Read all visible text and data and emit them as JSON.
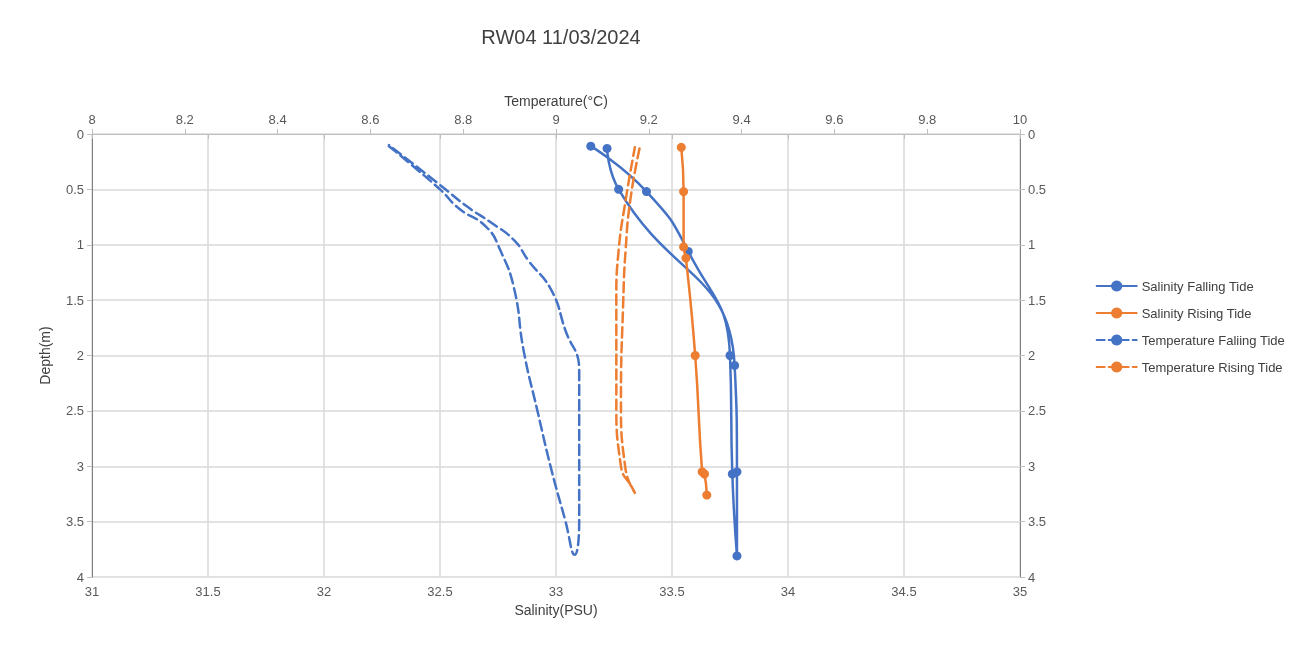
{
  "chart_data": {
    "type": "line",
    "title": "RW04 11/03/2024",
    "xlabel": "Salinity(PSU)",
    "x2label": "Temperature(°C)",
    "ylabel": "Depth(m)",
    "xlim": [
      31,
      35
    ],
    "xticks": [
      31,
      31.5,
      32,
      32.5,
      33,
      33.5,
      34,
      34.5,
      35
    ],
    "x2lim": [
      8,
      10
    ],
    "x2ticks": [
      8,
      8.2,
      8.4,
      8.6,
      8.8,
      9,
      9.2,
      9.4,
      9.6,
      9.8,
      10
    ],
    "ylim": [
      4,
      0
    ],
    "yticks": [
      0,
      0.5,
      1,
      1.5,
      2,
      2.5,
      3,
      3.5,
      4
    ],
    "y2lim": [
      4,
      0
    ],
    "y2ticks": [
      0,
      0.5,
      1,
      1.5,
      2,
      2.5,
      3,
      3.5,
      4
    ],
    "grid": true,
    "legend": "right",
    "series": [
      {
        "name": "Salinity Falling Tide",
        "color": "#4472c4",
        "marker": "circle",
        "line_style": "solid",
        "x": [
          33.15,
          33.39,
          33.57,
          33.75,
          33.76,
          33.78,
          33.78,
          33.77,
          33.27,
          33.22
        ],
        "values": [
          0.11,
          0.52,
          1.06,
          2.0,
          3.07,
          3.81,
          3.05,
          2.09,
          0.5,
          0.13
        ]
      },
      {
        "name": "Salinity Rising Tide",
        "color": "#ed7d31",
        "marker": "circle",
        "line_style": "solid",
        "x": [
          33.54,
          33.55,
          33.55,
          33.56,
          33.6,
          33.63,
          33.64,
          33.65
        ],
        "values": [
          0.12,
          0.52,
          1.02,
          1.12,
          2.0,
          3.05,
          3.07,
          3.26
        ]
      },
      {
        "name": "Temperature Faliing Tide",
        "color": "#4472c4",
        "marker": "none",
        "line_style": "dashed",
        "axis": "x2",
        "x": [
          8.64,
          8.75,
          8.79,
          8.85,
          8.88,
          8.91,
          8.93,
          8.96,
          8.99,
          9.02,
          9.04,
          9.05,
          9.05,
          9.05,
          9.05,
          9.02,
          8.99,
          8.94,
          8.91,
          8.86,
          8.81,
          8.75,
          8.64
        ],
        "values": [
          0.11,
          0.5,
          0.67,
          0.84,
          1.05,
          1.4,
          1.95,
          2.5,
          3.03,
          3.49,
          3.8,
          3.49,
          2.85,
          2.4,
          2.13,
          1.77,
          1.41,
          1.14,
          0.96,
          0.8,
          0.66,
          0.46,
          0.1
        ]
      },
      {
        "name": "Temperature Rising Tide",
        "color": "#ed7d31",
        "marker": "none",
        "line_style": "dashed",
        "axis": "x2",
        "x": [
          9.18,
          9.16,
          9.15,
          9.145,
          9.14,
          9.15,
          9.17,
          9.165,
          9.14,
          9.13,
          9.13,
          9.135,
          9.15,
          9.17
        ],
        "values": [
          0.13,
          0.6,
          1.05,
          1.5,
          2.4,
          3.03,
          3.24,
          3.2,
          3.0,
          2.4,
          1.5,
          1.05,
          0.6,
          0.12
        ]
      }
    ]
  }
}
